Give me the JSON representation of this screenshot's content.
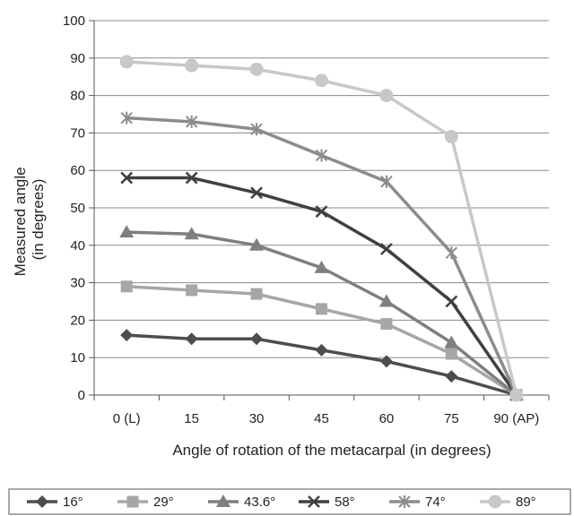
{
  "chart_data": {
    "type": "line",
    "title": "",
    "xlabel": "Angle of rotation of the metacarpal (in degrees)",
    "ylabel_line1": "Measured angle",
    "ylabel_line2": "(in degrees)",
    "x": [
      0,
      15,
      30,
      45,
      60,
      75,
      90
    ],
    "x_tick_labels": [
      "0  (L)",
      "15",
      "30",
      "45",
      "60",
      "75",
      "90  (AP)"
    ],
    "ylim": [
      0,
      100
    ],
    "y_ticks": [
      0,
      10,
      20,
      30,
      40,
      50,
      60,
      70,
      80,
      90,
      100
    ],
    "grid": true,
    "legend_position": "bottom",
    "series": [
      {
        "name": "16°",
        "marker": "diamond",
        "color": "#4d4d4d",
        "values": [
          16,
          15,
          15,
          12,
          9,
          5,
          0
        ]
      },
      {
        "name": "29°",
        "marker": "square",
        "color": "#a6a6a6",
        "values": [
          29,
          28,
          27,
          23,
          19,
          11,
          0
        ]
      },
      {
        "name": "43.6°",
        "marker": "triangle",
        "color": "#7f7f7f",
        "values": [
          43.5,
          43,
          40,
          34,
          25,
          14,
          0
        ]
      },
      {
        "name": "58°",
        "marker": "x",
        "color": "#404040",
        "values": [
          58,
          58,
          54,
          49,
          39,
          25,
          0
        ]
      },
      {
        "name": "74°",
        "marker": "star",
        "color": "#8c8c8c",
        "values": [
          74,
          73,
          71,
          64,
          57,
          38,
          0
        ]
      },
      {
        "name": "89°",
        "marker": "circle",
        "color": "#c8c8c8",
        "values": [
          89,
          88,
          87,
          84,
          80,
          69,
          0
        ]
      }
    ]
  }
}
